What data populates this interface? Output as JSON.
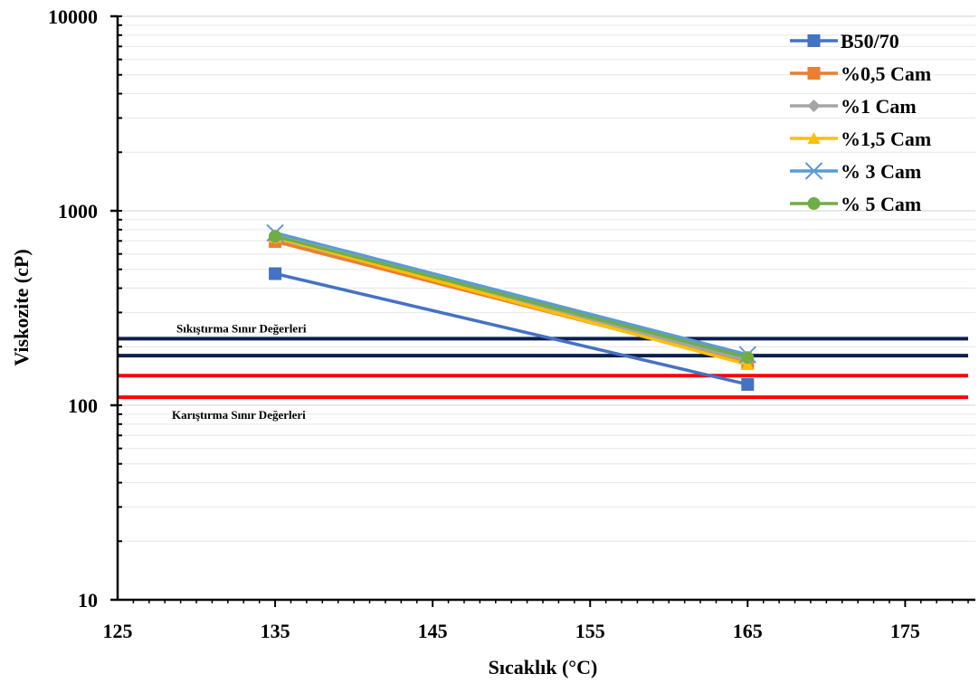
{
  "chart_data": {
    "type": "line",
    "xlabel": "Sıcaklık (°C)",
    "ylabel": "Viskozite (cP)",
    "x_ticks": [
      "125",
      "135",
      "145",
      "155",
      "165",
      "175"
    ],
    "y_ticks": [
      "10",
      "100",
      "1000",
      "10000"
    ],
    "xlim": [
      125,
      179
    ],
    "ylim": [
      10,
      10000
    ],
    "y_scale": "log",
    "grid": "horizontal",
    "legend_position": "top-right",
    "x": [
      135,
      165
    ],
    "series": [
      {
        "name": "B50/70",
        "values": [
          475,
          128
        ],
        "color": "#4472C4",
        "marker": "square"
      },
      {
        "name": "%0,5 Cam",
        "values": [
          695,
          165
        ],
        "color": "#ED7D31",
        "marker": "square"
      },
      {
        "name": "%1 Cam",
        "values": [
          720,
          170
        ],
        "color": "#A5A5A5",
        "marker": "diamond"
      },
      {
        "name": "%1,5 Cam",
        "values": [
          730,
          162
        ],
        "color": "#FFC000",
        "marker": "triangle"
      },
      {
        "name": "% 3 Cam",
        "values": [
          770,
          182
        ],
        "color": "#5B9BD5",
        "marker": "x"
      },
      {
        "name": "% 5 Cam",
        "values": [
          740,
          176
        ],
        "color": "#70AD47",
        "marker": "circle"
      }
    ],
    "reference_lines": [
      {
        "label": "Sıkıştırma Sınır Değerleri",
        "values": [
          220,
          180
        ],
        "color": "#0B1F4F"
      },
      {
        "label": "Karıştırma Sınır Değerleri",
        "values": [
          142,
          110
        ],
        "color": "#FF0000"
      }
    ]
  }
}
